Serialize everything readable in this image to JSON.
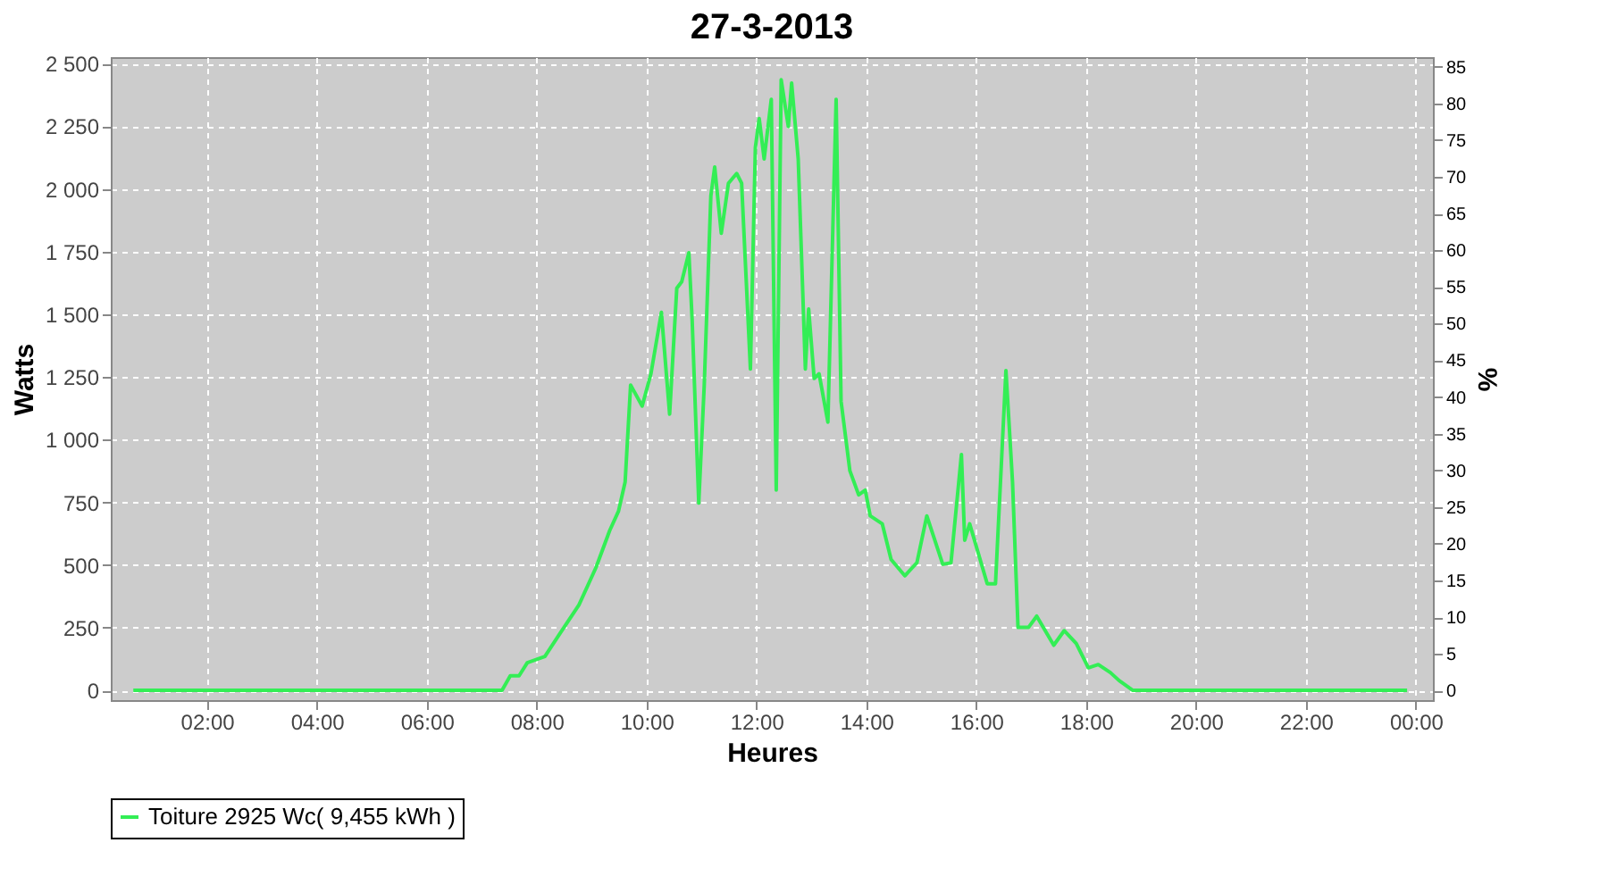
{
  "chart_data": {
    "type": "line",
    "title": "27-3-2013",
    "xlabel": "Heures",
    "ylabel": "Watts",
    "y2label": "%",
    "x": [
      0.66,
      7.37,
      7.52,
      7.68,
      7.83,
      8.15,
      8.4,
      8.77,
      9.08,
      9.33,
      9.49,
      9.61,
      9.71,
      9.92,
      10.08,
      10.27,
      10.42,
      10.55,
      10.64,
      10.77,
      10.83,
      10.95,
      11.05,
      11.17,
      11.24,
      11.36,
      11.49,
      11.64,
      11.73,
      11.89,
      11.98,
      12.05,
      12.14,
      12.27,
      12.36,
      12.45,
      12.58,
      12.64,
      12.76,
      12.89,
      12.95,
      13.05,
      13.14,
      13.3,
      13.45,
      13.54,
      13.7,
      13.86,
      13.98,
      14.07,
      14.29,
      14.45,
      14.7,
      14.92,
      15.1,
      15.39,
      15.54,
      15.73,
      15.79,
      15.88,
      16.2,
      16.35,
      16.54,
      16.66,
      16.76,
      16.95,
      17.1,
      17.41,
      17.6,
      17.82,
      18.04,
      18.22,
      18.44,
      18.6,
      18.85,
      23.84
    ],
    "series": [
      {
        "name": "Toiture 2925 Wc( 9,455 kWh )",
        "color": "#33ee55",
        "values": [
          0,
          0,
          58,
          58,
          110,
          135,
          219,
          341,
          490,
          638,
          715,
          831,
          1218,
          1134,
          1263,
          1508,
          1102,
          1604,
          1630,
          1746,
          1476,
          747,
          1218,
          1972,
          2088,
          1823,
          2023,
          2062,
          2023,
          1282,
          2165,
          2281,
          2120,
          2358,
          799,
          2436,
          2249,
          2423,
          2120,
          1282,
          1521,
          1244,
          1263,
          1070,
          2358,
          1153,
          876,
          780,
          799,
          696,
          664,
          522,
          457,
          509,
          696,
          503,
          509,
          941,
          599,
          664,
          425,
          425,
          1276,
          831,
          251,
          251,
          296,
          180,
          238,
          187,
          90,
          103,
          71,
          39,
          0,
          0
        ]
      }
    ],
    "xlim": [
      0.25,
      24.31
    ],
    "xticks": [
      {
        "value": 2,
        "label": "02:00"
      },
      {
        "value": 4,
        "label": "04:00"
      },
      {
        "value": 6,
        "label": "06:00"
      },
      {
        "value": 8,
        "label": "08:00"
      },
      {
        "value": 10,
        "label": "10:00"
      },
      {
        "value": 12,
        "label": "12:00"
      },
      {
        "value": 14,
        "label": "14:00"
      },
      {
        "value": 16,
        "label": "16:00"
      },
      {
        "value": 18,
        "label": "18:00"
      },
      {
        "value": 20,
        "label": "20:00"
      },
      {
        "value": 22,
        "label": "22:00"
      },
      {
        "value": 24,
        "label": "00:00"
      }
    ],
    "ylim": [
      -39,
      2526
    ],
    "yticks": [
      0,
      250,
      500,
      750,
      {
        "value": 1000,
        "label": "1 000"
      },
      {
        "value": 1250,
        "label": "1 250"
      },
      {
        "value": 1500,
        "label": "1 500"
      },
      {
        "value": 1750,
        "label": "1 750"
      },
      {
        "value": 2000,
        "label": "2 000"
      },
      {
        "value": 2250,
        "label": "2 250"
      },
      {
        "value": 2500,
        "label": "2 500"
      }
    ],
    "y2lim": [
      -1.3,
      86.3
    ],
    "y2ticks": [
      0,
      5,
      10,
      15,
      20,
      25,
      30,
      35,
      40,
      45,
      50,
      55,
      60,
      65,
      70,
      75,
      80,
      85
    ],
    "grid": true,
    "legend": "bottom",
    "marker": "none",
    "line_style": "solid"
  }
}
